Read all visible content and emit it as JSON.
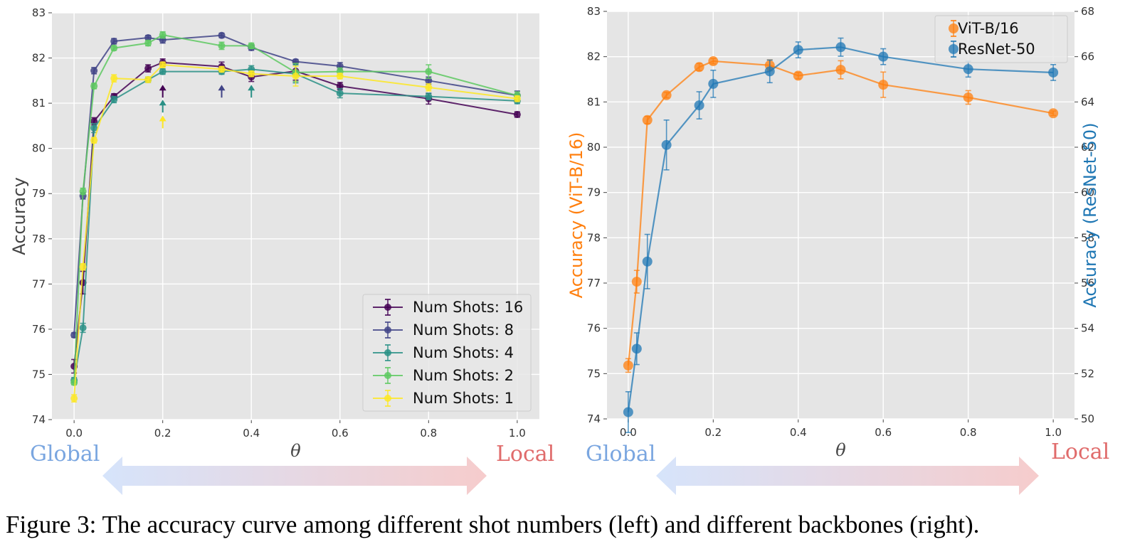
{
  "caption": "Figure 3: The accuracy curve among different shot numbers (left) and different backbones (right).",
  "annotations": {
    "left": {
      "global": "Global",
      "local": "Local"
    },
    "right": {
      "global": "Global",
      "local": "Local"
    }
  },
  "colors": {
    "plot_bg": "#e5e5e5",
    "grid": "#ffffff",
    "global_text": "#7aa6e0",
    "local_text": "#e06b6b",
    "arrow_left": "#d6e4fb",
    "arrow_right": "#f6cccc"
  },
  "chart_data": [
    {
      "type": "line",
      "title": "",
      "xlabel": "θ",
      "ylabel": "Accuracy",
      "xlim": [
        -0.05,
        1.05
      ],
      "ylim": [
        74,
        83
      ],
      "xticks": [
        "0.0",
        "0.2",
        "0.4",
        "0.6",
        "0.8",
        "1.0"
      ],
      "yticks": [
        "74",
        "75",
        "76",
        "77",
        "78",
        "79",
        "80",
        "81",
        "82",
        "83"
      ],
      "grid": true,
      "legend_position": "lower-right",
      "x": [
        0.0,
        0.02,
        0.045,
        0.09,
        0.167,
        0.2,
        0.333,
        0.4,
        0.5,
        0.6,
        0.8,
        1.0
      ],
      "series": [
        {
          "name": "Num Shots: 16",
          "color": "#440154",
          "values": [
            75.18,
            77.03,
            80.6,
            81.15,
            81.77,
            81.9,
            81.81,
            81.58,
            81.71,
            81.38,
            81.1,
            80.75
          ],
          "errors": [
            0.15,
            0.25,
            0.08,
            0.06,
            0.08,
            0.08,
            0.1,
            0.1,
            0.2,
            0.08,
            0.12,
            0.06
          ]
        },
        {
          "name": "Num Shots: 8",
          "color": "#414487",
          "values": [
            75.87,
            78.95,
            81.72,
            82.37,
            82.45,
            82.4,
            82.5,
            82.23,
            81.92,
            81.82,
            81.5,
            81.17
          ],
          "errors": [
            0.05,
            0.07,
            0.07,
            0.06,
            0.05,
            0.07,
            0.05,
            0.06,
            0.05,
            0.08,
            0.08,
            0.1
          ]
        },
        {
          "name": "Num Shots: 4",
          "color": "#2a9086",
          "values": [
            74.87,
            76.03,
            80.45,
            81.08,
            81.52,
            81.7,
            81.7,
            81.75,
            81.65,
            81.22,
            81.15,
            81.05
          ],
          "errors": [
            0.06,
            0.1,
            0.1,
            0.07,
            0.06,
            0.06,
            0.06,
            0.08,
            0.2,
            0.1,
            0.07,
            0.06
          ]
        },
        {
          "name": "Num Shots: 2",
          "color": "#5ec962",
          "values": [
            74.82,
            79.05,
            81.38,
            82.22,
            82.33,
            82.51,
            82.27,
            82.27,
            81.68,
            81.7,
            81.7,
            81.17
          ],
          "errors": [
            0.05,
            0.07,
            0.06,
            0.05,
            0.06,
            0.07,
            0.08,
            0.06,
            0.2,
            0.08,
            0.15,
            0.08
          ]
        },
        {
          "name": "Num Shots: 1",
          "color": "#fde725",
          "values": [
            74.47,
            77.38,
            80.18,
            81.55,
            81.52,
            81.85,
            81.75,
            81.65,
            81.6,
            81.6,
            81.35,
            81.1
          ],
          "errors": [
            0.08,
            0.07,
            0.06,
            0.08,
            0.06,
            0.06,
            0.06,
            0.06,
            0.22,
            0.06,
            0.08,
            0.06
          ]
        }
      ],
      "markers": [
        {
          "series": "Num Shots: 16",
          "x": 0.2,
          "y": 81.25
        },
        {
          "series": "Num Shots: 8",
          "x": 0.333,
          "y": 81.25
        },
        {
          "series": "Num Shots: 4",
          "x": 0.2,
          "y": 80.92
        },
        {
          "series": "Num Shots: 4",
          "x": 0.4,
          "y": 81.25
        },
        {
          "series": "Num Shots: 1",
          "x": 0.2,
          "y": 80.57
        }
      ]
    },
    {
      "type": "line",
      "title": "",
      "xlabel": "θ",
      "ylabel": "Accuracy (ViT-B/16)",
      "ylabel_right": "Accuracy (ResNet-50)",
      "xlim": [
        -0.05,
        1.05
      ],
      "ylim": [
        74,
        83
      ],
      "ylim_right": [
        50,
        68
      ],
      "xticks": [
        "0.0",
        "0.2",
        "0.4",
        "0.6",
        "0.8",
        "1.0"
      ],
      "yticks": [
        "74",
        "75",
        "76",
        "77",
        "78",
        "79",
        "80",
        "81",
        "82",
        "83"
      ],
      "yticks_right": [
        "50",
        "52",
        "54",
        "56",
        "58",
        "60",
        "62",
        "64",
        "66",
        "68"
      ],
      "grid": true,
      "legend_position": "top-right",
      "x": [
        0.0,
        0.02,
        0.045,
        0.09,
        0.167,
        0.2,
        0.333,
        0.4,
        0.5,
        0.6,
        0.8,
        1.0
      ],
      "series": [
        {
          "name": "ViT-B/16",
          "color": "#ff7f0e",
          "axis": "left",
          "values": [
            75.18,
            77.03,
            80.6,
            81.15,
            81.77,
            81.9,
            81.81,
            81.58,
            81.71,
            81.38,
            81.1,
            80.75
          ],
          "errors": [
            0.15,
            0.25,
            0.08,
            0.06,
            0.08,
            0.06,
            0.12,
            0.07,
            0.2,
            0.28,
            0.15,
            0.05
          ]
        },
        {
          "name": "ResNet-50",
          "color": "#1f77b4",
          "axis": "right",
          "values": [
            50.3,
            53.1,
            56.95,
            62.1,
            63.85,
            64.8,
            65.35,
            66.3,
            66.42,
            66.0,
            65.45,
            65.3
          ],
          "errors": [
            0.9,
            0.7,
            1.2,
            1.1,
            0.6,
            0.6,
            0.5,
            0.35,
            0.4,
            0.35,
            0.35,
            0.35
          ]
        }
      ]
    }
  ]
}
